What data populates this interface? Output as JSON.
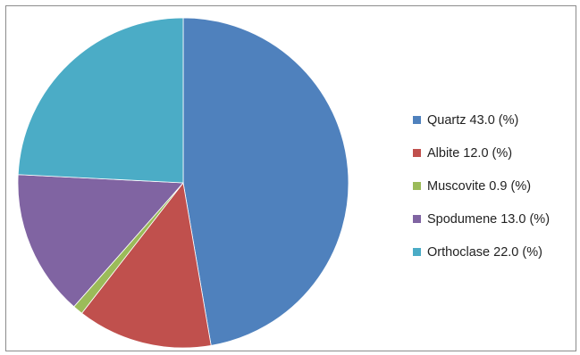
{
  "chart_data": {
    "type": "pie",
    "title": "",
    "legend_position": "right",
    "slices": [
      {
        "label": "Quartz 43.0 (%)",
        "category": "Quartz",
        "value": 43.0,
        "color": "#4f81bd"
      },
      {
        "label": "Albite 12.0 (%)",
        "category": "Albite",
        "value": 12.0,
        "color": "#c0504d"
      },
      {
        "label": "Muscovite 0.9 (%)",
        "category": "Muscovite",
        "value": 0.9,
        "color": "#9bbb59"
      },
      {
        "label": "Spodumene 13.0 (%)",
        "category": "Spodumene",
        "value": 13.0,
        "color": "#8064a2"
      },
      {
        "label": "Orthoclase 22.0 (%)",
        "category": "Orthoclase",
        "value": 22.0,
        "color": "#4bacc6"
      }
    ]
  }
}
